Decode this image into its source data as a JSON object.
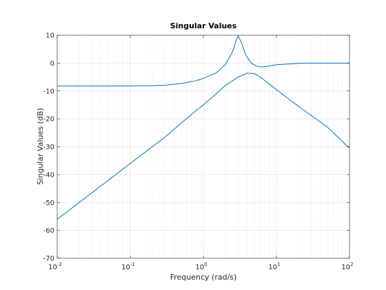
{
  "chart_data": {
    "type": "line",
    "title": "Singular Values",
    "xlabel": "Frequency (rad/s)",
    "ylabel": "Singular Values (dB)",
    "x_scale": "log",
    "xlim": [
      0.01,
      100
    ],
    "ylim": [
      -70,
      10
    ],
    "grid": true,
    "x_ticks": [
      0.01,
      0.1,
      1,
      10,
      100
    ],
    "x_tick_labels": [
      {
        "base": "10",
        "exp": "-2"
      },
      {
        "base": "10",
        "exp": "-1"
      },
      {
        "base": "10",
        "exp": "0"
      },
      {
        "base": "10",
        "exp": "1"
      },
      {
        "base": "10",
        "exp": "2"
      }
    ],
    "y_ticks": [
      10,
      0,
      -10,
      -20,
      -30,
      -40,
      -50,
      -60,
      -70
    ],
    "y_tick_labels": [
      "10",
      "0",
      "-10",
      "-20",
      "-30",
      "-40",
      "-50",
      "-60",
      "-70"
    ],
    "series": [
      {
        "color": "#0072bd",
        "points": [
          [
            0.01,
            -8.2
          ],
          [
            0.03,
            -8.2
          ],
          [
            0.1,
            -8.2
          ],
          [
            0.2,
            -8.1
          ],
          [
            0.3,
            -7.9
          ],
          [
            0.5,
            -7.3
          ],
          [
            0.8,
            -6.3
          ],
          [
            1.0,
            -5.5
          ],
          [
            1.5,
            -3.5
          ],
          [
            2.0,
            -0.5
          ],
          [
            2.5,
            4.0
          ],
          [
            2.8,
            8.0
          ],
          [
            3.0,
            9.8
          ],
          [
            3.3,
            7.5
          ],
          [
            3.8,
            3.0
          ],
          [
            4.5,
            0.0
          ],
          [
            5.5,
            -1.2
          ],
          [
            6.5,
            -1.4
          ],
          [
            8.0,
            -1.0
          ],
          [
            10.0,
            -0.6
          ],
          [
            15.0,
            -0.3
          ],
          [
            20.0,
            -0.1
          ],
          [
            30.0,
            0.0
          ],
          [
            100.0,
            0.0
          ]
        ]
      },
      {
        "color": "#0072bd",
        "points": [
          [
            0.01,
            -56.0
          ],
          [
            0.03,
            -46.5
          ],
          [
            0.1,
            -36.0
          ],
          [
            0.2,
            -30.0
          ],
          [
            0.3,
            -26.5
          ],
          [
            0.5,
            -21.5
          ],
          [
            0.8,
            -17.0
          ],
          [
            1.0,
            -15.0
          ],
          [
            1.5,
            -11.0
          ],
          [
            2.0,
            -8.0
          ],
          [
            3.0,
            -5.0
          ],
          [
            4.0,
            -3.6
          ],
          [
            5.0,
            -3.8
          ],
          [
            6.0,
            -5.0
          ],
          [
            8.0,
            -7.5
          ],
          [
            10.0,
            -9.5
          ],
          [
            20.0,
            -15.5
          ],
          [
            50.0,
            -23.0
          ],
          [
            100.0,
            -30.5
          ]
        ]
      }
    ]
  }
}
